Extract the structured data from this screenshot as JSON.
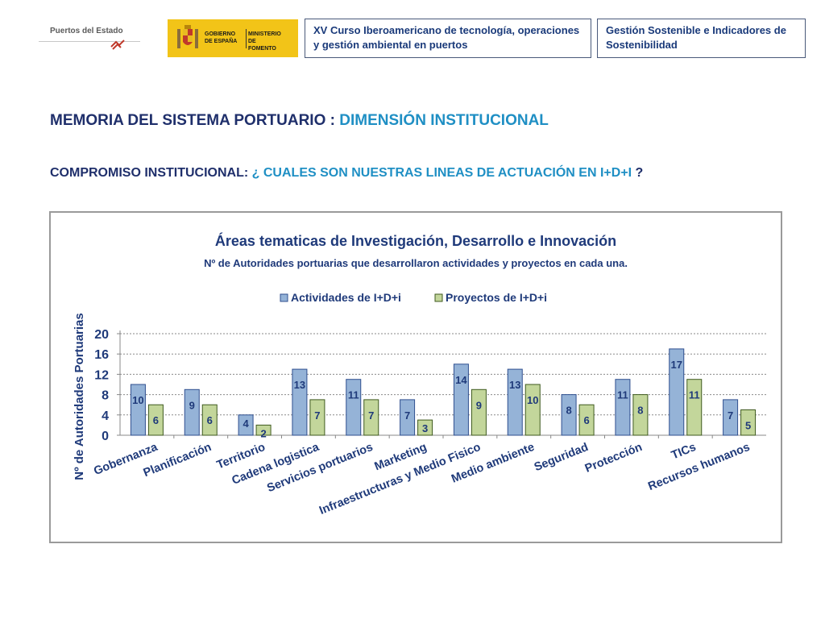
{
  "header": {
    "logo_puertos": "Puertos del Estado",
    "logo_gobierno": "GOBIERNO DE ESPAÑA",
    "logo_ministerio": "MINISTERIO DE FOMENTO",
    "course_box": "XV Curso Iberoamericano de tecnología, operaciones y gestión ambiental en puertos",
    "topic_box": "Gestión Sostenible e Indicadores de Sostenibilidad"
  },
  "heading": {
    "line1_prefix": "MEMORIA DEL SISTEMA PORTUARIO : ",
    "line1_highlight": "DIMENSIÓN INSTITUCIONAL",
    "line2_prefix": "COMPROMISO INSTITUCIONAL: ",
    "line2_highlight": "¿ CUALES SON NUESTRAS LINEAS DE ACTUACIÓN EN I+D+I",
    "line2_suffix": " ?"
  },
  "colors": {
    "series1": "#95b3d7",
    "series1_border": "#2f4f8f",
    "series2": "#c3d69b",
    "series2_border": "#3f5a1f",
    "title_dark": "#1f2f6b",
    "title_accent": "#1f8fc4",
    "chart_text": "#1f3a7a"
  },
  "chart_data": {
    "type": "bar",
    "title": "Áreas tematicas de Investigación, Desarrollo e Innovación",
    "subtitle": "Nº de Autoridades portuarias que desarrollaron actividades y proyectos en cada una.",
    "xlabel": "",
    "ylabel": "Nº de Autoridades Portuarias",
    "ylim": [
      0,
      20
    ],
    "yticks": [
      0,
      4,
      8,
      12,
      16,
      20
    ],
    "grid": true,
    "legend_position": "top",
    "categories": [
      "Gobernanza",
      "Planificación",
      "Territorio",
      "Cadena logistica",
      "Servicios portuarios",
      "Marketing",
      "Infraestructuras y Medio Fisico",
      "Medio ambiente",
      "Seguridad",
      "Protección",
      "TICs",
      "Recursos humanos"
    ],
    "series": [
      {
        "name": "Actividades de I+D+i",
        "values": [
          10,
          9,
          4,
          13,
          11,
          7,
          14,
          13,
          8,
          11,
          17,
          7
        ]
      },
      {
        "name": "Proyectos de I+D+i",
        "values": [
          6,
          6,
          2,
          7,
          7,
          3,
          9,
          10,
          6,
          8,
          11,
          5
        ]
      }
    ]
  }
}
